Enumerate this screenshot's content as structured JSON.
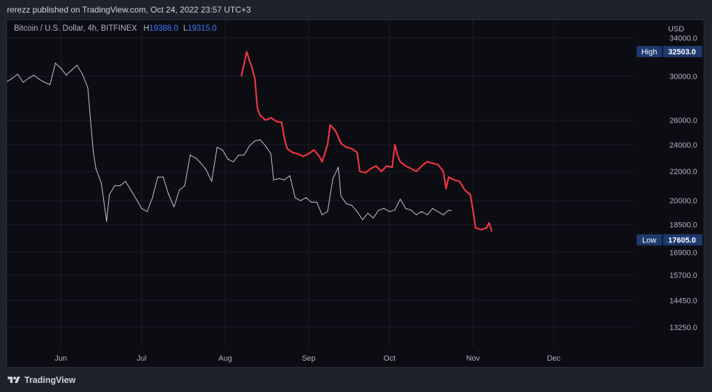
{
  "publisher_line": "rerezz published on TradingView.com, Oct 24, 2022 23:57 UTC+3",
  "legend": {
    "symbol": "Bitcoin / U.S. Dollar, 4h, BITFINEX",
    "high_label": "H",
    "high_value": "19388.0",
    "low_label": "L",
    "low_value": "19315.0"
  },
  "footer": {
    "brand": "TradingView"
  },
  "colors": {
    "background": "#0c0d12",
    "main_series": "#c8cad0",
    "projection_series": "#f23645",
    "badge": "#1e3a6e"
  },
  "chart_data": {
    "type": "line",
    "currency_label": "USD",
    "y_scale": "log",
    "ylim": [
      12400,
      35200
    ],
    "y_ticks": [
      34000,
      30000,
      26000,
      24000,
      22000,
      20000,
      18500,
      16900,
      15700,
      14450,
      13250
    ],
    "y_tick_labels": [
      "34000.0",
      "30000.0",
      "26000.0",
      "24000.0",
      "22000.0",
      "20000.0",
      "18500.0",
      "16900.0",
      "15700.0",
      "14450.0",
      "13250.0"
    ],
    "x_range": [
      "2022-05-12",
      "2022-12-31"
    ],
    "x_ticks": [
      {
        "label": "Jun",
        "date": "2022-06-01"
      },
      {
        "label": "Jul",
        "date": "2022-07-01"
      },
      {
        "label": "Aug",
        "date": "2022-08-01"
      },
      {
        "label": "Sep",
        "date": "2022-09-01"
      },
      {
        "label": "Oct",
        "date": "2022-10-01"
      },
      {
        "label": "Nov",
        "date": "2022-11-01"
      },
      {
        "label": "Dec",
        "date": "2022-12-01"
      }
    ],
    "grid": true,
    "badges": [
      {
        "label": "High",
        "value": "32503.0",
        "y": 32503
      },
      {
        "label": "Low",
        "value": "17605.0",
        "y": 17605
      }
    ],
    "series": [
      {
        "points": [
          [
            "2022-05-12",
            29500
          ],
          [
            "2022-05-14",
            29800
          ],
          [
            "2022-05-16",
            30200
          ],
          [
            "2022-05-18",
            29400
          ],
          [
            "2022-05-20",
            29800
          ],
          [
            "2022-05-22",
            30100
          ],
          [
            "2022-05-24",
            29700
          ],
          [
            "2022-05-26",
            29400
          ],
          [
            "2022-05-28",
            29200
          ],
          [
            "2022-05-30",
            31300
          ],
          [
            "2022-06-01",
            30800
          ],
          [
            "2022-06-03",
            30100
          ],
          [
            "2022-06-05",
            30600
          ],
          [
            "2022-06-07",
            31100
          ],
          [
            "2022-06-09",
            30200
          ],
          [
            "2022-06-11",
            28900
          ],
          [
            "2022-06-13",
            23500
          ],
          [
            "2022-06-14",
            22200
          ],
          [
            "2022-06-16",
            21200
          ],
          [
            "2022-06-18",
            18700
          ],
          [
            "2022-06-19",
            20400
          ],
          [
            "2022-06-21",
            21000
          ],
          [
            "2022-06-23",
            21000
          ],
          [
            "2022-06-25",
            21300
          ],
          [
            "2022-06-27",
            20700
          ],
          [
            "2022-06-29",
            20100
          ],
          [
            "2022-07-01",
            19500
          ],
          [
            "2022-07-03",
            19300
          ],
          [
            "2022-07-05",
            20200
          ],
          [
            "2022-07-07",
            21600
          ],
          [
            "2022-07-09",
            21600
          ],
          [
            "2022-07-11",
            20400
          ],
          [
            "2022-07-13",
            19600
          ],
          [
            "2022-07-15",
            20700
          ],
          [
            "2022-07-17",
            21000
          ],
          [
            "2022-07-19",
            23200
          ],
          [
            "2022-07-21",
            23000
          ],
          [
            "2022-07-23",
            22600
          ],
          [
            "2022-07-25",
            22100
          ],
          [
            "2022-07-27",
            21300
          ],
          [
            "2022-07-29",
            23800
          ],
          [
            "2022-07-31",
            23600
          ],
          [
            "2022-08-02",
            22900
          ],
          [
            "2022-08-04",
            22700
          ],
          [
            "2022-08-06",
            23200
          ],
          [
            "2022-08-08",
            23200
          ],
          [
            "2022-08-10",
            23900
          ],
          [
            "2022-08-12",
            24300
          ],
          [
            "2022-08-14",
            24400
          ],
          [
            "2022-08-16",
            23900
          ],
          [
            "2022-08-18",
            23300
          ],
          [
            "2022-08-19",
            21400
          ],
          [
            "2022-08-21",
            21500
          ],
          [
            "2022-08-23",
            21400
          ],
          [
            "2022-08-25",
            21700
          ],
          [
            "2022-08-27",
            20200
          ],
          [
            "2022-08-29",
            20000
          ],
          [
            "2022-08-31",
            20200
          ],
          [
            "2022-09-02",
            19900
          ],
          [
            "2022-09-04",
            19900
          ],
          [
            "2022-09-06",
            19100
          ],
          [
            "2022-09-08",
            19300
          ],
          [
            "2022-09-10",
            21500
          ],
          [
            "2022-09-12",
            22300
          ],
          [
            "2022-09-13",
            20300
          ],
          [
            "2022-09-15",
            19800
          ],
          [
            "2022-09-17",
            19700
          ],
          [
            "2022-09-19",
            19300
          ],
          [
            "2022-09-21",
            18800
          ],
          [
            "2022-09-23",
            19200
          ],
          [
            "2022-09-25",
            18900
          ],
          [
            "2022-09-27",
            19400
          ],
          [
            "2022-09-29",
            19500
          ],
          [
            "2022-10-01",
            19300
          ],
          [
            "2022-10-03",
            19400
          ],
          [
            "2022-10-05",
            20100
          ],
          [
            "2022-10-07",
            19500
          ],
          [
            "2022-10-09",
            19400
          ],
          [
            "2022-10-11",
            19100
          ],
          [
            "2022-10-13",
            19300
          ],
          [
            "2022-10-15",
            19100
          ],
          [
            "2022-10-17",
            19500
          ],
          [
            "2022-10-19",
            19300
          ],
          [
            "2022-10-21",
            19100
          ],
          [
            "2022-10-23",
            19400
          ],
          [
            "2022-10-24",
            19350
          ]
        ]
      },
      {
        "points": [
          [
            "2022-08-07",
            30000
          ],
          [
            "2022-08-08",
            31200
          ],
          [
            "2022-08-09",
            32500
          ],
          [
            "2022-08-10",
            31600
          ],
          [
            "2022-08-11",
            30800
          ],
          [
            "2022-08-12",
            29800
          ],
          [
            "2022-08-13",
            27000
          ],
          [
            "2022-08-14",
            26400
          ],
          [
            "2022-08-16",
            26000
          ],
          [
            "2022-08-18",
            26200
          ],
          [
            "2022-08-20",
            25900
          ],
          [
            "2022-08-22",
            25800
          ],
          [
            "2022-08-23",
            24500
          ],
          [
            "2022-08-24",
            23700
          ],
          [
            "2022-08-26",
            23400
          ],
          [
            "2022-08-28",
            23300
          ],
          [
            "2022-08-30",
            23100
          ],
          [
            "2022-09-01",
            23300
          ],
          [
            "2022-09-03",
            23600
          ],
          [
            "2022-09-05",
            23100
          ],
          [
            "2022-09-06",
            22700
          ],
          [
            "2022-09-08",
            24000
          ],
          [
            "2022-09-09",
            25600
          ],
          [
            "2022-09-11",
            25100
          ],
          [
            "2022-09-13",
            24100
          ],
          [
            "2022-09-15",
            23800
          ],
          [
            "2022-09-17",
            23700
          ],
          [
            "2022-09-19",
            23400
          ],
          [
            "2022-09-20",
            22000
          ],
          [
            "2022-09-22",
            21900
          ],
          [
            "2022-09-24",
            22200
          ],
          [
            "2022-09-26",
            22400
          ],
          [
            "2022-09-28",
            22000
          ],
          [
            "2022-09-30",
            22400
          ],
          [
            "2022-10-02",
            22300
          ],
          [
            "2022-10-03",
            24000
          ],
          [
            "2022-10-04",
            23200
          ],
          [
            "2022-10-05",
            22700
          ],
          [
            "2022-10-07",
            22400
          ],
          [
            "2022-10-09",
            22200
          ],
          [
            "2022-10-11",
            22000
          ],
          [
            "2022-10-13",
            22400
          ],
          [
            "2022-10-15",
            22700
          ],
          [
            "2022-10-17",
            22600
          ],
          [
            "2022-10-19",
            22500
          ],
          [
            "2022-10-21",
            22000
          ],
          [
            "2022-10-22",
            20800
          ],
          [
            "2022-10-23",
            21600
          ],
          [
            "2022-10-25",
            21400
          ],
          [
            "2022-10-27",
            21300
          ],
          [
            "2022-10-29",
            20700
          ],
          [
            "2022-10-31",
            20400
          ],
          [
            "2022-11-01",
            19400
          ],
          [
            "2022-11-02",
            18300
          ],
          [
            "2022-11-04",
            18200
          ],
          [
            "2022-11-06",
            18300
          ],
          [
            "2022-11-07",
            18600
          ],
          [
            "2022-11-08",
            18100
          ]
        ]
      }
    ]
  }
}
